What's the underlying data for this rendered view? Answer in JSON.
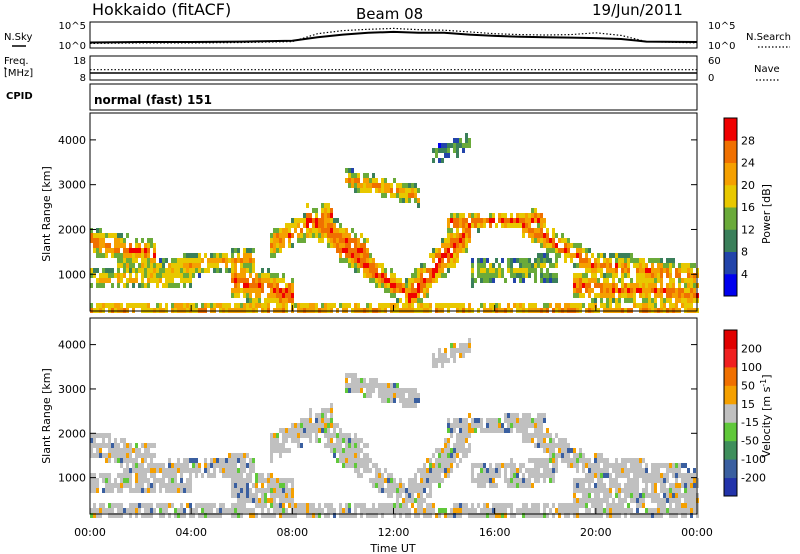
{
  "header": {
    "title": "Hokkaido (fitACF)",
    "beam": "Beam 08",
    "date": "19/Jun/2011"
  },
  "strips": {
    "nsky_label": "N.Sky",
    "nsearch_label": "N.Search",
    "freq_label_1": "Freq.",
    "freq_label_2": "[MHz]",
    "nave_label": "Nave",
    "cpid_label": "CPID",
    "cpid_text": "normal (fast) 151"
  },
  "chart_data": [
    {
      "type": "line",
      "name": "noise-strip",
      "left_ticks": [
        "10^5",
        "10^0"
      ],
      "right_ticks": [
        "10^5",
        "10^0"
      ],
      "x": [
        0,
        2,
        4,
        6,
        8,
        9,
        10,
        11,
        12,
        13,
        14,
        15,
        16,
        17,
        18,
        19,
        20,
        21,
        22,
        24
      ],
      "series": [
        {
          "name": "N.Sky",
          "values": [
            0.8,
            0.9,
            0.9,
            1.0,
            1.2,
            2.0,
            2.6,
            3.0,
            3.2,
            3.0,
            3.0,
            2.6,
            2.3,
            2.1,
            2.0,
            1.9,
            1.8,
            1.6,
            1.0,
            0.9
          ]
        },
        {
          "name": "N.Search",
          "values": [
            0.6,
            0.7,
            0.7,
            0.8,
            1.0,
            2.8,
            3.5,
            3.8,
            4.0,
            3.7,
            3.6,
            3.2,
            2.8,
            2.6,
            2.5,
            2.6,
            3.0,
            2.4,
            1.0,
            0.7
          ]
        }
      ]
    },
    {
      "type": "line",
      "name": "freq-nave-strip",
      "left_ticks": [
        "18",
        "8"
      ],
      "right_ticks": [
        "60",
        "0"
      ],
      "x": [
        0,
        24
      ],
      "series": [
        {
          "name": "Freq.",
          "values": [
            10.5,
            10.5
          ]
        },
        {
          "name": "Nave",
          "values": [
            25,
            25
          ]
        }
      ]
    },
    {
      "type": "heatmap",
      "name": "power",
      "ylabel": "Slant Range [km]",
      "yticks": [
        1000,
        2000,
        3000,
        4000
      ],
      "ylim": [
        180,
        4600
      ],
      "xlim": [
        0,
        24
      ],
      "colorbar_label": "Power [dB]",
      "colorbar_ticks": [
        "28",
        "24",
        "20",
        "16",
        "12",
        "8",
        "4"
      ],
      "colorbar_colors": [
        "#0000ee",
        "#2244aa",
        "#3a7f5a",
        "#6aaa3a",
        "#e8c800",
        "#f5a000",
        "#f07000",
        "#f00000"
      ]
    },
    {
      "type": "heatmap",
      "name": "velocity",
      "ylabel": "Slant Range [km]",
      "yticks": [
        1000,
        2000,
        3000,
        4000
      ],
      "ylim": [
        180,
        4600
      ],
      "xlim": [
        0,
        24
      ],
      "xlabel": "Time UT",
      "xticks": [
        "00:00",
        "04:00",
        "08:00",
        "12:00",
        "16:00",
        "20:00",
        "00:00"
      ],
      "colorbar_label": "Velocity [m s",
      "colorbar_label_sup": "-1",
      "colorbar_label_close": "]",
      "colorbar_ticks": [
        "200",
        "100",
        "50",
        "15",
        "-15",
        "-50",
        "-100",
        "-200"
      ],
      "colorbar_colors": [
        "#2233aa",
        "#3a5fa0",
        "#3f8f5c",
        "#60c83a",
        "#c0c0c0",
        "#f5a000",
        "#f07000",
        "#f02020",
        "#e00000"
      ]
    }
  ]
}
